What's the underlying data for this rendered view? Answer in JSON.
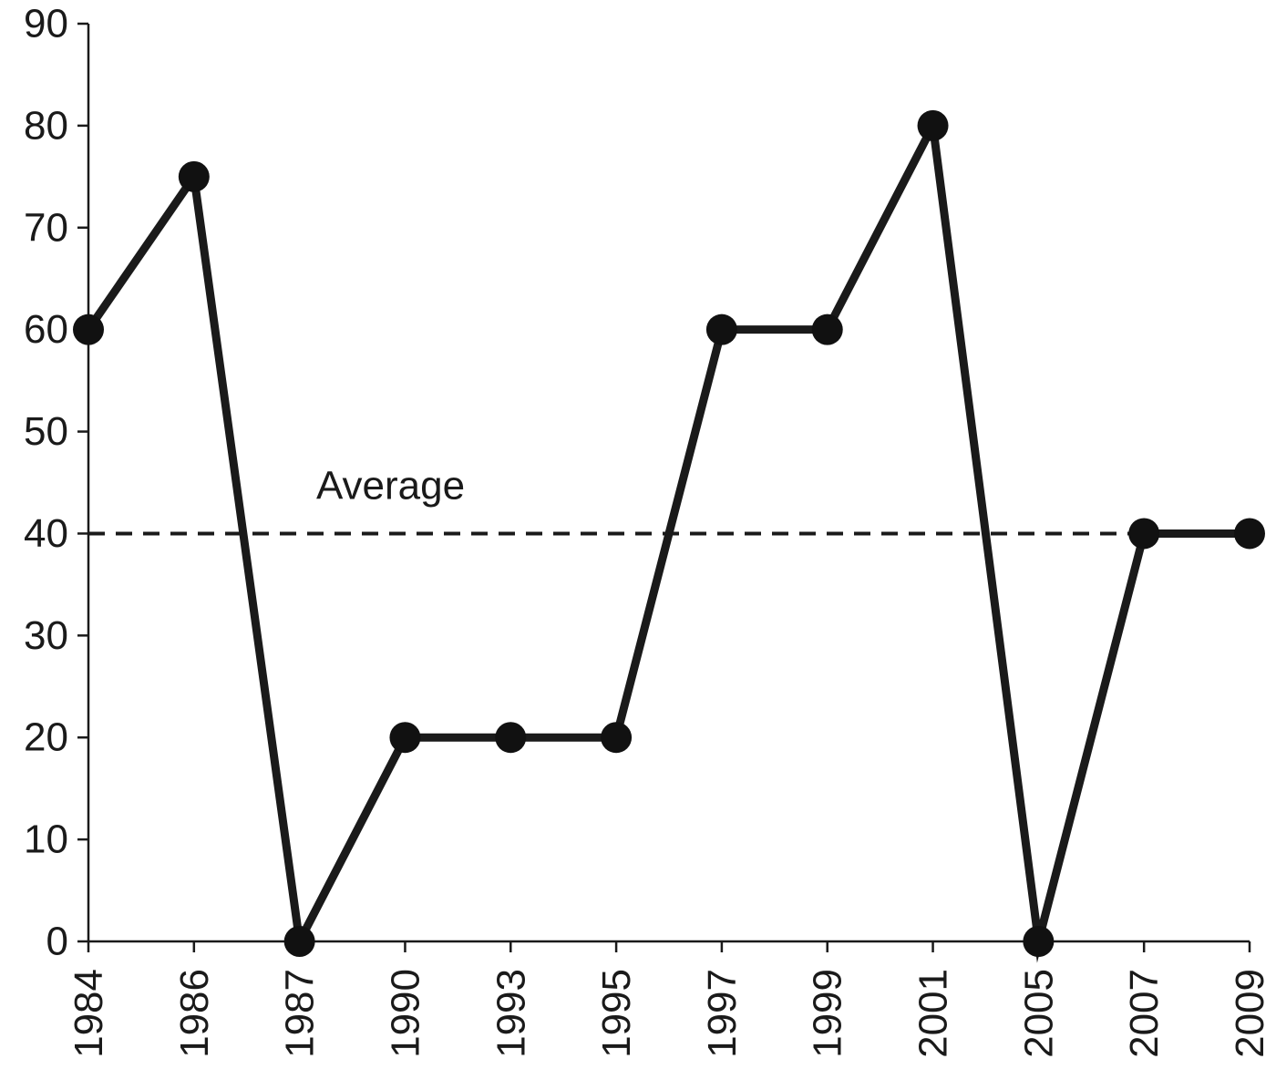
{
  "chart_data": {
    "type": "line",
    "title": "",
    "xlabel": "",
    "ylabel": "",
    "categories": [
      "1984",
      "1986",
      "1987",
      "1990",
      "1993",
      "1995",
      "1997",
      "1999",
      "2001",
      "2005",
      "2007",
      "2009"
    ],
    "values": [
      60,
      75,
      0,
      20,
      20,
      20,
      60,
      60,
      80,
      0,
      40,
      40
    ],
    "ylim": [
      0,
      90
    ],
    "yticks": [
      "0",
      "10",
      "20",
      "30",
      "40",
      "50",
      "60",
      "70",
      "80",
      "90"
    ],
    "reference_line": {
      "value": 40,
      "style": "dashed",
      "label": "Average"
    },
    "grid": false,
    "legend": "none",
    "colors": {
      "line": "#1a1a1a",
      "marker": "#111111",
      "axis": "#1a1a1a"
    }
  }
}
